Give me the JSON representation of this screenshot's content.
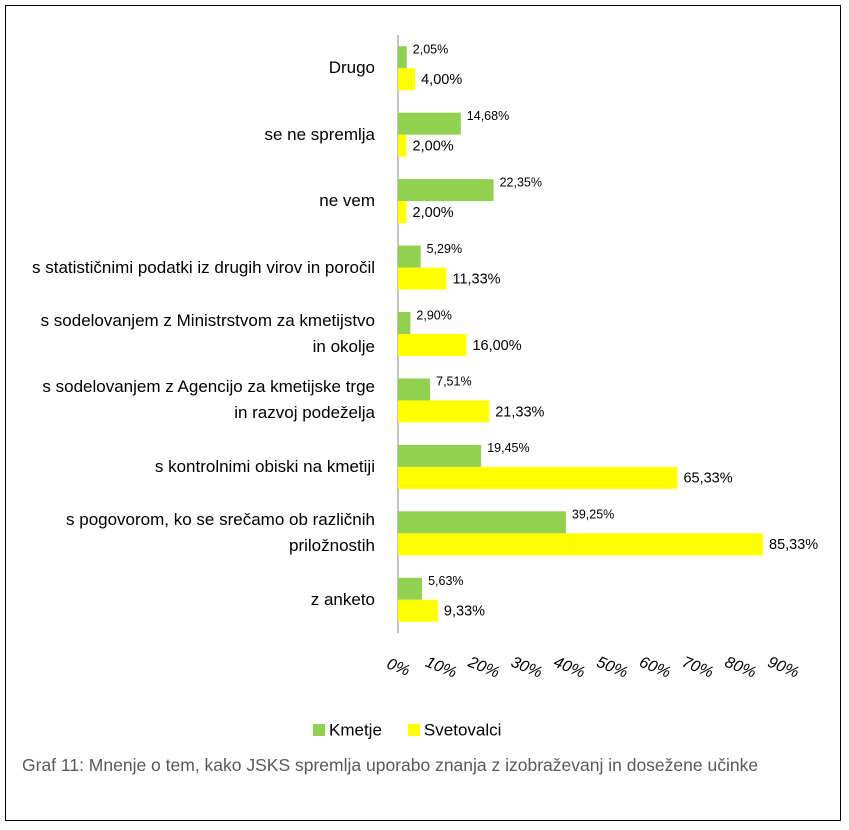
{
  "chart_data": {
    "type": "hbar",
    "categories": [
      "Drugo",
      "se ne spremlja",
      "ne vem",
      "s statističnimi podatki iz drugih virov in poročil",
      "s sodelovanjem z Ministrstvom za kmetijstvo in okolje",
      "s sodelovanjem z Agencijo za kmetijske trge in razvoj podeželja",
      "s kontrolnimi obiski na kmetiji",
      "s pogovorom, ko se srečamo ob različnih priložnostih",
      "z anketo"
    ],
    "series": [
      {
        "name": "Kmetje",
        "color": "#92d050",
        "values": [
          2.05,
          14.68,
          22.35,
          5.29,
          2.9,
          7.51,
          19.45,
          39.25,
          5.63
        ],
        "value_labels": [
          "2,05%",
          "14,68%",
          "22,35%",
          "5,29%",
          "2,90%",
          "7,51%",
          "19,45%",
          "39,25%",
          "5,63%"
        ]
      },
      {
        "name": "Svetovalci",
        "color": "#ffff00",
        "values": [
          4.0,
          2.0,
          2.0,
          11.33,
          16.0,
          21.33,
          65.33,
          85.33,
          9.33
        ],
        "value_labels": [
          "4,00%",
          "2,00%",
          "2,00%",
          "11,33%",
          "16,00%",
          "21,33%",
          "65,33%",
          "85,33%",
          "9,33%"
        ]
      }
    ],
    "xlim": [
      0,
      90
    ],
    "xticks": [
      {
        "value": 0,
        "label": "0%"
      },
      {
        "value": 10,
        "label": "10%"
      },
      {
        "value": 20,
        "label": "20%"
      },
      {
        "value": 30,
        "label": "30%"
      },
      {
        "value": 40,
        "label": "40%"
      },
      {
        "value": 50,
        "label": "50%"
      },
      {
        "value": 60,
        "label": "60%"
      },
      {
        "value": 70,
        "label": "70%"
      },
      {
        "value": 80,
        "label": "80%"
      },
      {
        "value": 90,
        "label": "90%"
      }
    ],
    "legend": "bottom",
    "caption": "Graf 11: Mnenje o tem, kako JSKS spremlja uporabo znanja z izobraževanj in dosežene učinke"
  }
}
